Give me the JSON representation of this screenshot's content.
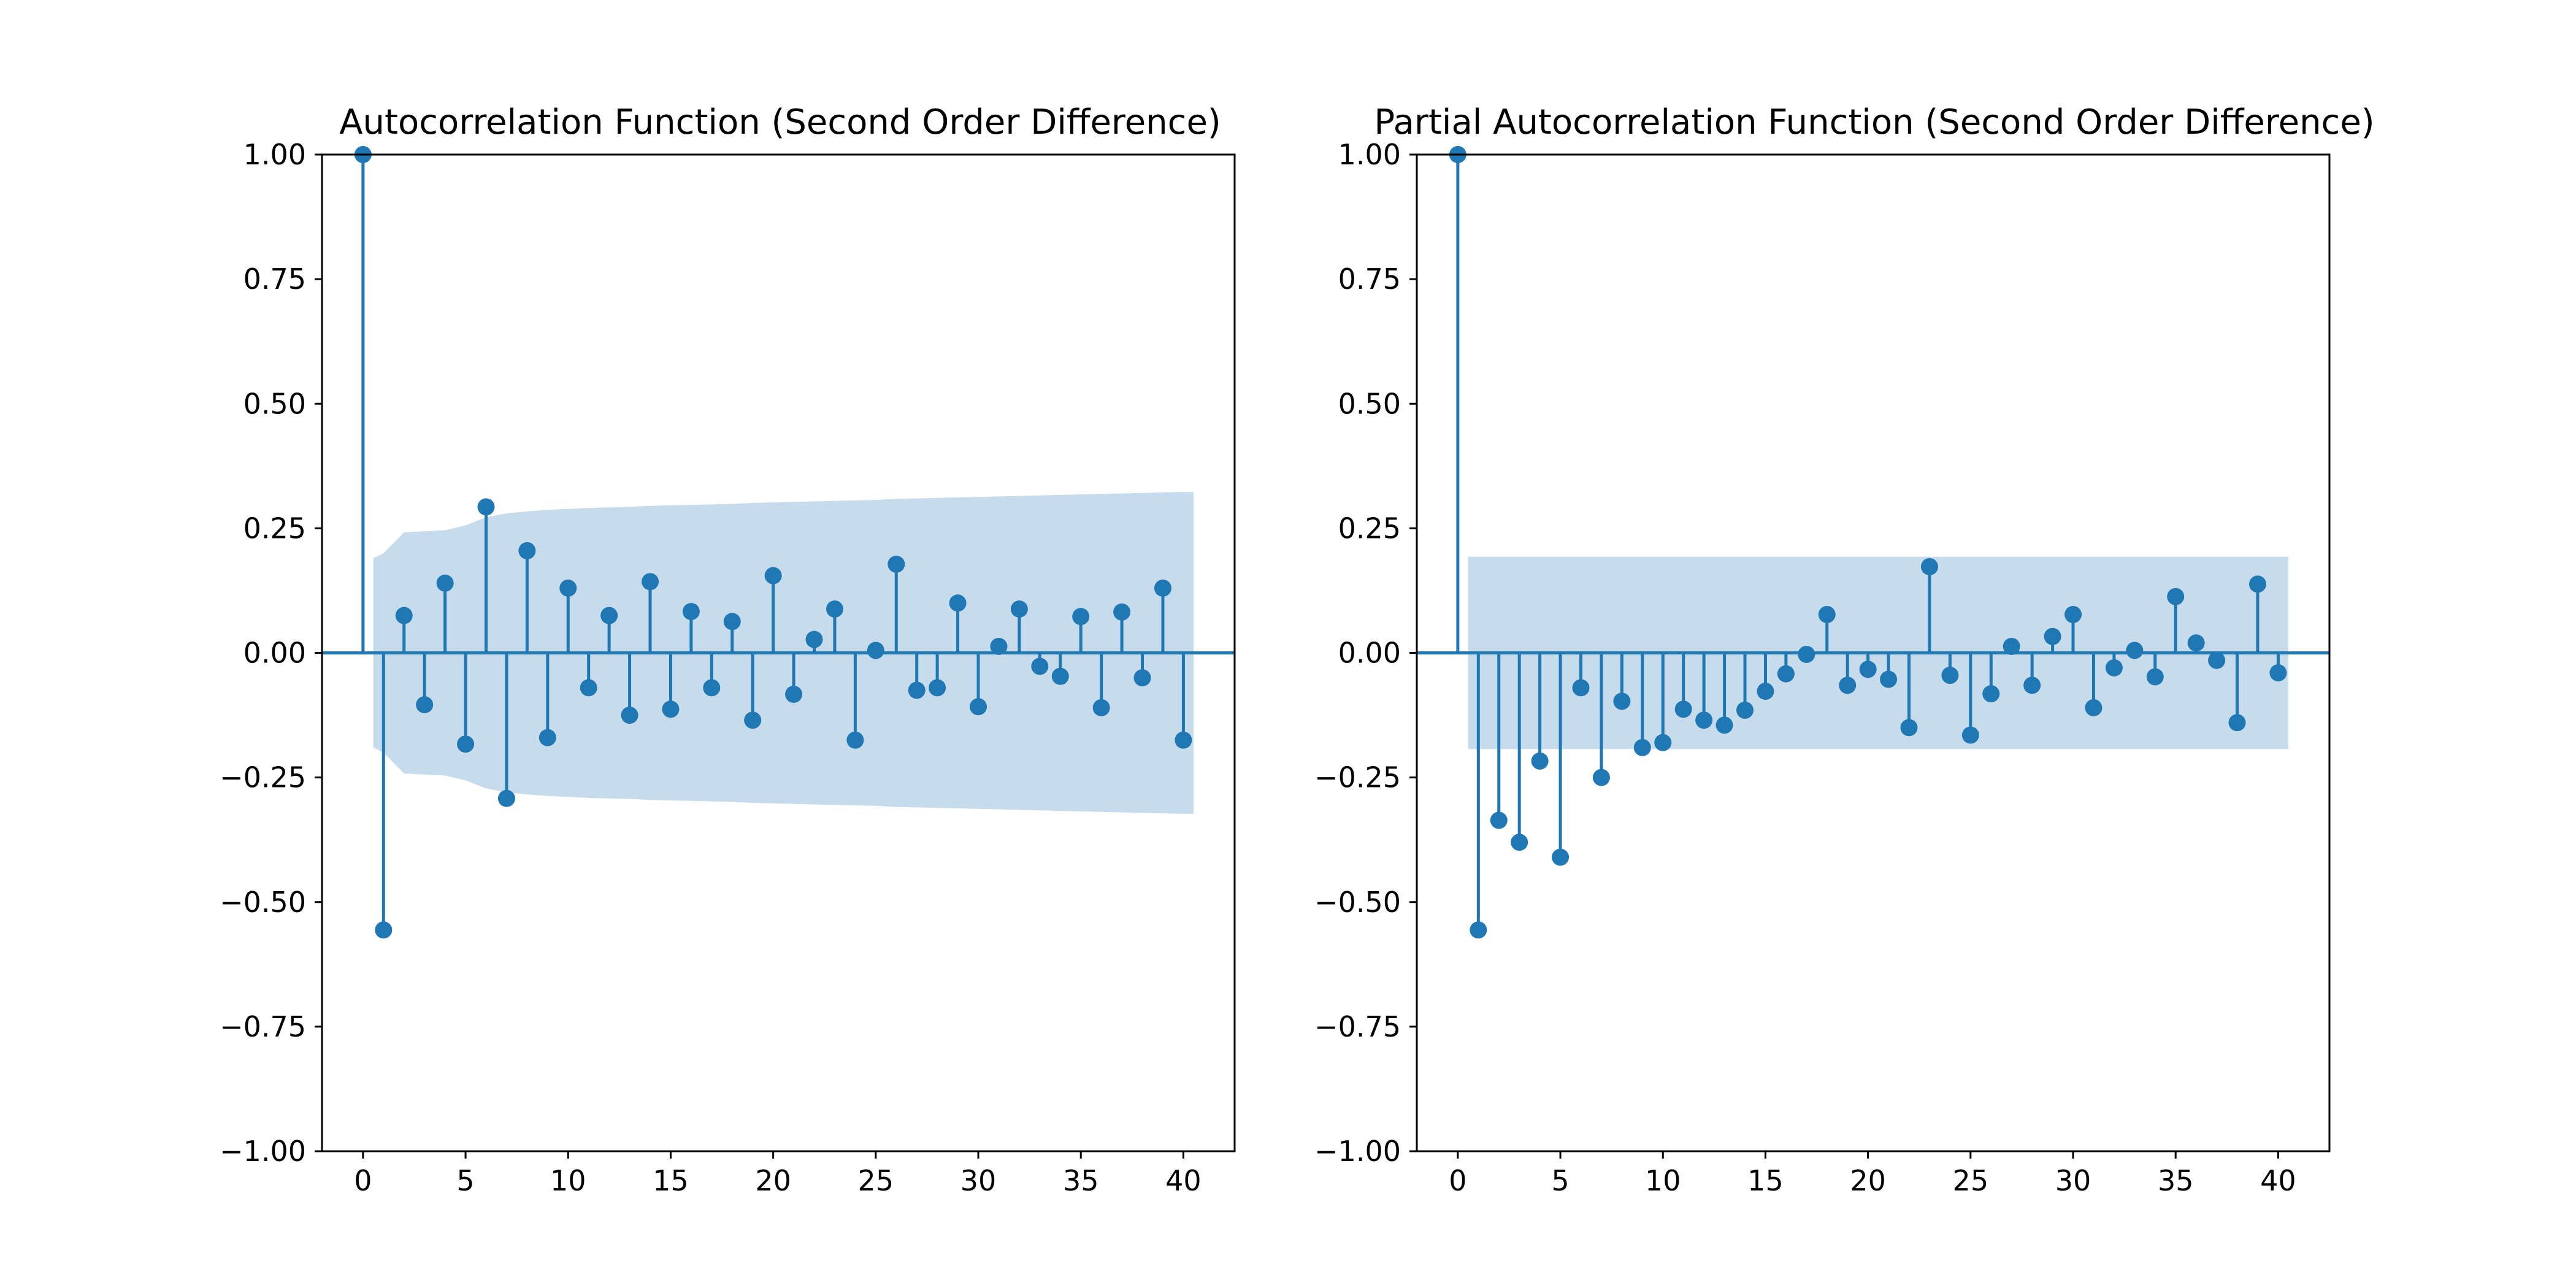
{
  "chart_data": [
    {
      "type": "stem",
      "title": "Autocorrelation Function (Second Order Difference)",
      "xlabel": "",
      "ylabel": "",
      "xlim": [
        -2,
        42.5
      ],
      "ylim": [
        -1.0,
        1.0
      ],
      "xticks": [
        0,
        5,
        10,
        15,
        20,
        25,
        30,
        35,
        40
      ],
      "yticks": [
        1.0,
        0.75,
        0.5,
        0.25,
        0.0,
        -0.25,
        -0.5,
        -0.75,
        -1.0
      ],
      "ytick_labels": [
        "1.00",
        "0.75",
        "0.50",
        "0.25",
        "0.00",
        "−0.25",
        "−0.50",
        "−0.75",
        "−1.00"
      ],
      "grid": false,
      "lags": [
        0,
        1,
        2,
        3,
        4,
        5,
        6,
        7,
        8,
        9,
        10,
        11,
        12,
        13,
        14,
        15,
        16,
        17,
        18,
        19,
        20,
        21,
        22,
        23,
        24,
        25,
        26,
        27,
        28,
        29,
        30,
        31,
        32,
        33,
        34,
        35,
        36,
        37,
        38,
        39,
        40
      ],
      "values": [
        1.0,
        -0.556,
        0.075,
        -0.104,
        0.14,
        -0.183,
        0.293,
        -0.292,
        0.205,
        -0.17,
        0.13,
        -0.07,
        0.075,
        -0.125,
        0.143,
        -0.113,
        0.083,
        -0.07,
        0.063,
        -0.135,
        0.155,
        -0.083,
        0.027,
        0.088,
        -0.175,
        0.005,
        0.178,
        -0.075,
        -0.07,
        0.1,
        -0.108,
        0.013,
        0.088,
        -0.027,
        -0.047,
        0.073,
        -0.11,
        0.082,
        -0.05,
        0.13,
        -0.175
      ],
      "confidence_band": {
        "lags": [
          0.5,
          1,
          2,
          3,
          4,
          5,
          6,
          7,
          8,
          9,
          10,
          11,
          12,
          13,
          14,
          15,
          16,
          17,
          18,
          19,
          20,
          21,
          22,
          23,
          24,
          25,
          26,
          27,
          28,
          29,
          30,
          31,
          32,
          33,
          34,
          35,
          36,
          37,
          38,
          39,
          40,
          40.5
        ],
        "halfwidth": [
          0.19,
          0.2,
          0.242,
          0.244,
          0.246,
          0.256,
          0.272,
          0.28,
          0.284,
          0.287,
          0.289,
          0.291,
          0.292,
          0.293,
          0.295,
          0.296,
          0.297,
          0.298,
          0.299,
          0.301,
          0.302,
          0.303,
          0.304,
          0.305,
          0.306,
          0.307,
          0.309,
          0.31,
          0.311,
          0.312,
          0.313,
          0.314,
          0.315,
          0.316,
          0.317,
          0.318,
          0.319,
          0.32,
          0.321,
          0.322,
          0.323,
          0.323
        ]
      },
      "colors": {
        "stem": "#1f77b4",
        "band": "#c6dbeb"
      }
    },
    {
      "type": "stem",
      "title": "Partial Autocorrelation Function (Second Order Difference)",
      "xlabel": "",
      "ylabel": "",
      "xlim": [
        -2,
        42.5
      ],
      "ylim": [
        -1.0,
        1.0
      ],
      "xticks": [
        0,
        5,
        10,
        15,
        20,
        25,
        30,
        35,
        40
      ],
      "yticks": [
        1.0,
        0.75,
        0.5,
        0.25,
        0.0,
        -0.25,
        -0.5,
        -0.75,
        -1.0
      ],
      "ytick_labels": [
        "1.00",
        "0.75",
        "0.50",
        "0.25",
        "0.00",
        "−0.25",
        "−0.50",
        "−0.75",
        "−1.00"
      ],
      "grid": false,
      "lags": [
        0,
        1,
        2,
        3,
        4,
        5,
        6,
        7,
        8,
        9,
        10,
        11,
        12,
        13,
        14,
        15,
        16,
        17,
        18,
        19,
        20,
        21,
        22,
        23,
        24,
        25,
        26,
        27,
        28,
        29,
        30,
        31,
        32,
        33,
        34,
        35,
        36,
        37,
        38,
        39,
        40
      ],
      "values": [
        1.0,
        -0.556,
        -0.336,
        -0.38,
        -0.217,
        -0.41,
        -0.07,
        -0.25,
        -0.097,
        -0.19,
        -0.18,
        -0.113,
        -0.135,
        -0.145,
        -0.115,
        -0.077,
        -0.042,
        -0.003,
        0.077,
        -0.065,
        -0.033,
        -0.053,
        -0.15,
        0.173,
        -0.045,
        -0.165,
        -0.082,
        0.013,
        -0.065,
        0.033,
        0.077,
        -0.11,
        -0.03,
        0.005,
        -0.048,
        0.113,
        0.02,
        -0.015,
        -0.14,
        0.138,
        -0.04
      ],
      "confidence_band": {
        "lags": [
          0.5,
          40.5
        ],
        "halfwidth": [
          0.193,
          0.193
        ]
      },
      "colors": {
        "stem": "#1f77b4",
        "band": "#c6dbeb"
      }
    }
  ]
}
